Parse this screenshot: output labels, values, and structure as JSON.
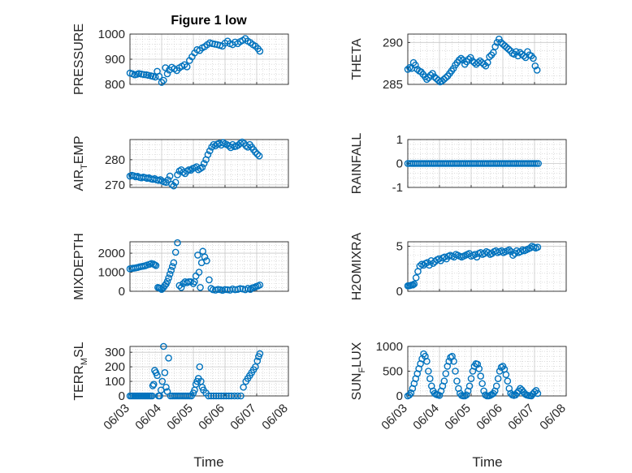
{
  "figure": {
    "title": "Figure 1 low",
    "xlabel": "Time"
  },
  "colors": {
    "marker": "#0072BD",
    "axis": "#262626",
    "grid": "#c8c8c8"
  },
  "chart_data": [
    {
      "type": "scatter",
      "ylabel": "PRESSURE",
      "ylabel_parts": [
        [
          "PRESSURE",
          0
        ]
      ],
      "title": "Figure 1 low",
      "show_x_ticks": false,
      "xlim": [
        "06/03",
        "06/08"
      ],
      "ylim": [
        800,
        1000
      ],
      "yticks": [
        800,
        900,
        1000
      ],
      "ytick_labels": [
        "800",
        "900",
        "1000"
      ],
      "x_days": [
        0.0,
        0.08,
        0.15,
        0.22,
        0.28,
        0.36,
        0.44,
        0.52,
        0.58,
        0.66,
        0.72,
        0.8,
        0.86,
        0.92,
        1.0,
        1.06,
        1.12,
        1.18,
        1.24,
        1.32,
        1.4,
        1.48,
        1.56,
        1.64,
        1.72,
        1.8,
        1.88,
        1.96,
        2.04,
        2.12,
        2.2,
        2.28,
        2.36,
        2.44,
        2.52,
        2.6,
        2.68,
        2.76,
        2.84,
        2.92,
        3.0,
        3.08,
        3.16,
        3.24,
        3.32,
        3.4,
        3.48,
        3.56,
        3.64,
        3.72,
        3.8,
        3.88,
        3.96,
        4.04,
        4.1
      ],
      "y": [
        845,
        842,
        838,
        840,
        843,
        841,
        839,
        838,
        836,
        834,
        832,
        829,
        852,
        832,
        808,
        816,
        866,
        842,
        857,
        868,
        862,
        855,
        866,
        872,
        878,
        870,
        895,
        910,
        925,
        938,
        935,
        945,
        950,
        958,
        965,
        962,
        960,
        958,
        955,
        952,
        964,
        972,
        962,
        958,
        968,
        962,
        970,
        975,
        982,
        972,
        966,
        958,
        952,
        942,
        932
      ]
    },
    {
      "type": "scatter",
      "ylabel": "THETA",
      "ylabel_parts": [
        [
          "THETA",
          0
        ]
      ],
      "show_x_ticks": false,
      "xlim": [
        "06/03",
        "06/08"
      ],
      "ylim": [
        285,
        291
      ],
      "yticks": [
        285,
        290
      ],
      "ytick_labels": [
        "285",
        "290"
      ],
      "x_days": [
        0.0,
        0.06,
        0.12,
        0.18,
        0.24,
        0.3,
        0.36,
        0.42,
        0.48,
        0.55,
        0.6,
        0.66,
        0.72,
        0.78,
        0.84,
        0.9,
        0.96,
        1.02,
        1.08,
        1.14,
        1.2,
        1.26,
        1.32,
        1.38,
        1.44,
        1.5,
        1.56,
        1.62,
        1.68,
        1.74,
        1.8,
        1.86,
        1.92,
        1.98,
        2.04,
        2.1,
        2.16,
        2.22,
        2.28,
        2.34,
        2.4,
        2.46,
        2.52,
        2.58,
        2.64,
        2.7,
        2.76,
        2.82,
        2.88,
        2.94,
        3.0,
        3.06,
        3.12,
        3.18,
        3.24,
        3.3,
        3.36,
        3.42,
        3.48,
        3.54,
        3.6,
        3.66,
        3.72,
        3.78,
        3.84,
        3.9,
        3.96,
        4.02,
        4.08
      ],
      "y": [
        286.8,
        287.0,
        286.9,
        287.6,
        287.3,
        286.8,
        286.6,
        286.5,
        286.2,
        285.9,
        285.6,
        285.8,
        286.1,
        286.3,
        285.9,
        285.7,
        285.5,
        285.3,
        285.4,
        285.6,
        285.8,
        286.0,
        286.3,
        286.6,
        286.9,
        287.3,
        287.6,
        287.9,
        288.1,
        287.9,
        287.4,
        287.7,
        288.0,
        288.2,
        287.8,
        287.6,
        287.4,
        287.6,
        287.8,
        287.6,
        287.4,
        287.2,
        287.6,
        288.3,
        288.5,
        288.8,
        289.5,
        290.0,
        290.4,
        290.0,
        289.8,
        289.6,
        289.4,
        289.2,
        289.0,
        288.7,
        288.6,
        288.9,
        288.4,
        288.8,
        288.6,
        288.4,
        288.2,
        288.9,
        288.5,
        288.4,
        288.1,
        287.2,
        286.7
      ]
    },
    {
      "type": "scatter",
      "ylabel": "AIRTEMP",
      "ylabel_parts": [
        [
          "AIR",
          0
        ],
        [
          "T",
          1
        ],
        [
          "EMP",
          0
        ]
      ],
      "show_x_ticks": false,
      "xlim": [
        "06/03",
        "06/08"
      ],
      "ylim": [
        269,
        288
      ],
      "yticks": [
        270,
        280
      ],
      "ytick_labels": [
        "270",
        "280"
      ],
      "x_days": [
        0.0,
        0.06,
        0.12,
        0.18,
        0.24,
        0.3,
        0.36,
        0.42,
        0.48,
        0.54,
        0.6,
        0.66,
        0.72,
        0.78,
        0.84,
        0.9,
        0.96,
        1.02,
        1.08,
        1.14,
        1.2,
        1.26,
        1.32,
        1.38,
        1.44,
        1.5,
        1.56,
        1.62,
        1.68,
        1.74,
        1.8,
        1.86,
        1.92,
        1.98,
        2.04,
        2.1,
        2.16,
        2.22,
        2.28,
        2.34,
        2.4,
        2.46,
        2.52,
        2.58,
        2.64,
        2.7,
        2.76,
        2.82,
        2.88,
        2.94,
        3.0,
        3.06,
        3.12,
        3.18,
        3.24,
        3.3,
        3.36,
        3.42,
        3.48,
        3.54,
        3.6,
        3.66,
        3.72,
        3.78,
        3.84,
        3.9,
        3.96,
        4.02,
        4.08
      ],
      "y": [
        273.5,
        273.8,
        273.6,
        273.2,
        273.4,
        273.0,
        272.8,
        273.1,
        272.9,
        272.6,
        272.8,
        272.4,
        272.2,
        272.5,
        272.0,
        271.8,
        272.1,
        271.5,
        271.2,
        271.0,
        272.0,
        273.5,
        270.2,
        269.6,
        271.0,
        274.0,
        275.5,
        276.0,
        275.0,
        274.5,
        275.5,
        276.0,
        275.8,
        276.5,
        276.8,
        277.2,
        276.0,
        276.5,
        277.0,
        278.5,
        280.0,
        282.0,
        283.5,
        285.0,
        286.0,
        285.5,
        286.2,
        286.5,
        285.8,
        286.8,
        286.3,
        286.0,
        285.5,
        284.8,
        286.0,
        285.2,
        285.4,
        285.8,
        286.5,
        287.0,
        286.5,
        285.5,
        285.0,
        286.0,
        285.0,
        284.0,
        283.0,
        282.2,
        281.5
      ]
    },
    {
      "type": "scatter",
      "ylabel": "RAINFALL",
      "ylabel_parts": [
        [
          "RAINFALL",
          0
        ]
      ],
      "show_x_ticks": false,
      "xlim": [
        "06/03",
        "06/08"
      ],
      "ylim": [
        -1,
        1
      ],
      "yticks": [
        -1,
        0,
        1
      ],
      "ytick_labels": [
        "-1",
        "0",
        "1"
      ],
      "x_range": [
        0.0,
        4.12
      ],
      "n_points": 70,
      "y_constant": 0
    },
    {
      "type": "scatter",
      "ylabel": "MIXDEPTH",
      "ylabel_parts": [
        [
          "MIXDEPTH",
          0
        ]
      ],
      "show_x_ticks": false,
      "xlim": [
        "06/03",
        "06/08"
      ],
      "ylim": [
        0,
        2600
      ],
      "yticks": [
        0,
        1000,
        2000
      ],
      "ytick_labels": [
        "0",
        "1000",
        "2000"
      ],
      "x_days": [
        0.0,
        0.06,
        0.12,
        0.18,
        0.24,
        0.3,
        0.36,
        0.42,
        0.48,
        0.54,
        0.62,
        0.68,
        0.74,
        0.78,
        0.82,
        0.88,
        0.92,
        0.96,
        1.0,
        1.06,
        1.1,
        1.14,
        1.18,
        1.22,
        1.26,
        1.3,
        1.34,
        1.38,
        1.44,
        1.5,
        1.56,
        1.62,
        1.68,
        1.74,
        1.8,
        1.86,
        1.92,
        2.0,
        2.04,
        2.08,
        2.14,
        2.18,
        2.22,
        2.26,
        2.3,
        2.36,
        2.42,
        2.5,
        2.56,
        2.62,
        2.7,
        2.78,
        2.86,
        2.92,
        3.0,
        3.08,
        3.16,
        3.24,
        3.32,
        3.4,
        3.48,
        3.56,
        3.64,
        3.72,
        3.8,
        3.86,
        3.92,
        3.98,
        4.04,
        4.1
      ],
      "y": [
        1180,
        1200,
        1210,
        1230,
        1250,
        1280,
        1300,
        1320,
        1340,
        1380,
        1420,
        1460,
        1430,
        1390,
        1350,
        200,
        180,
        150,
        100,
        200,
        300,
        380,
        520,
        700,
        900,
        1100,
        1300,
        1500,
        2050,
        2550,
        300,
        200,
        400,
        500,
        450,
        500,
        500,
        400,
        500,
        800,
        1900,
        1000,
        200,
        1500,
        2100,
        1800,
        1600,
        600,
        150,
        80,
        60,
        100,
        80,
        50,
        90,
        80,
        60,
        120,
        80,
        100,
        140,
        120,
        80,
        150,
        100,
        180,
        200,
        250,
        280,
        330
      ]
    },
    {
      "type": "scatter",
      "ylabel": "H2OMIXRA",
      "ylabel_parts": [
        [
          "H2OMIXRA",
          0
        ]
      ],
      "show_x_ticks": false,
      "xlim": [
        "06/03",
        "06/08"
      ],
      "ylim": [
        0,
        5.5
      ],
      "yticks": [
        0,
        5
      ],
      "ytick_labels": [
        "0",
        "5"
      ],
      "x_days": [
        0.0,
        0.04,
        0.08,
        0.12,
        0.16,
        0.2,
        0.26,
        0.32,
        0.38,
        0.44,
        0.5,
        0.56,
        0.62,
        0.68,
        0.74,
        0.8,
        0.86,
        0.92,
        0.98,
        1.04,
        1.1,
        1.16,
        1.22,
        1.28,
        1.34,
        1.4,
        1.46,
        1.52,
        1.58,
        1.64,
        1.7,
        1.76,
        1.82,
        1.88,
        1.94,
        2.0,
        2.06,
        2.12,
        2.18,
        2.24,
        2.3,
        2.36,
        2.42,
        2.48,
        2.54,
        2.6,
        2.66,
        2.72,
        2.78,
        2.84,
        2.9,
        2.96,
        3.02,
        3.08,
        3.14,
        3.2,
        3.26,
        3.32,
        3.38,
        3.44,
        3.5,
        3.56,
        3.62,
        3.68,
        3.74,
        3.8,
        3.86,
        3.92,
        3.98,
        4.04,
        4.1
      ],
      "y": [
        0.6,
        0.6,
        0.65,
        0.7,
        0.7,
        0.8,
        1.5,
        2.2,
        2.8,
        3.0,
        2.9,
        3.1,
        3.2,
        2.9,
        3.4,
        3.1,
        3.3,
        3.5,
        3.6,
        3.4,
        3.7,
        3.8,
        3.6,
        3.9,
        4.0,
        3.9,
        3.8,
        4.1,
        4.0,
        3.9,
        3.8,
        3.9,
        4.0,
        4.1,
        4.2,
        3.9,
        4.0,
        4.1,
        3.8,
        4.2,
        4.3,
        4.1,
        4.2,
        4.4,
        4.3,
        4.1,
        4.2,
        4.4,
        4.5,
        4.3,
        4.4,
        4.5,
        4.3,
        4.4,
        4.5,
        4.6,
        4.4,
        4.0,
        4.2,
        4.5,
        4.3,
        4.4,
        4.6,
        4.5,
        4.6,
        4.7,
        4.8,
        5.0,
        4.9,
        4.8,
        4.9
      ]
    },
    {
      "type": "scatter",
      "ylabel": "TERRMSL",
      "ylabel_parts": [
        [
          "TERR",
          0
        ],
        [
          "M",
          1
        ],
        [
          "SL",
          0
        ]
      ],
      "show_x_ticks": true,
      "xlim": [
        "06/03",
        "06/08"
      ],
      "ylim": [
        0,
        340
      ],
      "yticks": [
        0,
        100,
        200,
        300
      ],
      "ytick_labels": [
        "0",
        "100",
        "200",
        "300"
      ],
      "x_days": [
        0.0,
        0.05,
        0.1,
        0.15,
        0.2,
        0.25,
        0.3,
        0.35,
        0.4,
        0.45,
        0.5,
        0.55,
        0.6,
        0.65,
        0.7,
        0.72,
        0.75,
        0.78,
        0.82,
        0.86,
        0.9,
        0.94,
        0.98,
        1.02,
        1.06,
        1.1,
        1.14,
        1.18,
        1.22,
        1.28,
        1.34,
        1.4,
        1.46,
        1.52,
        1.58,
        1.64,
        1.7,
        1.76,
        1.82,
        1.88,
        1.94,
        2.0,
        2.04,
        2.08,
        2.12,
        2.16,
        2.2,
        2.24,
        2.28,
        2.32,
        2.4,
        2.48,
        2.56,
        2.64,
        2.72,
        2.8,
        2.88,
        2.96,
        3.04,
        3.12,
        3.2,
        3.3,
        3.4,
        3.5,
        3.58,
        3.66,
        3.72,
        3.78,
        3.84,
        3.9,
        3.96,
        4.02,
        4.06,
        4.1
      ],
      "y": [
        0,
        0,
        0,
        0,
        0,
        0,
        0,
        0,
        0,
        0,
        0,
        0,
        0,
        0,
        0,
        70,
        80,
        175,
        160,
        140,
        0,
        0,
        40,
        100,
        340,
        160,
        60,
        30,
        260,
        0,
        0,
        0,
        0,
        0,
        0,
        0,
        0,
        0,
        0,
        0,
        0,
        20,
        40,
        80,
        100,
        120,
        200,
        100,
        60,
        40,
        20,
        0,
        0,
        0,
        0,
        0,
        0,
        0,
        0,
        0,
        0,
        0,
        0,
        0,
        60,
        100,
        120,
        140,
        160,
        180,
        200,
        240,
        270,
        290
      ]
    },
    {
      "type": "scatter",
      "ylabel": "SUNFLUX",
      "ylabel_parts": [
        [
          "SUN",
          0
        ],
        [
          "F",
          1
        ],
        [
          "LUX",
          0
        ]
      ],
      "show_x_ticks": true,
      "xlim": [
        "06/03",
        "06/08"
      ],
      "ylim": [
        0,
        1000
      ],
      "yticks": [
        0,
        500,
        1000
      ],
      "ytick_labels": [
        "0",
        "500",
        "1000"
      ],
      "x_days": [
        0.0,
        0.05,
        0.1,
        0.15,
        0.2,
        0.25,
        0.3,
        0.35,
        0.4,
        0.45,
        0.5,
        0.55,
        0.6,
        0.65,
        0.7,
        0.75,
        0.8,
        0.85,
        0.9,
        0.95,
        1.0,
        1.05,
        1.1,
        1.15,
        1.2,
        1.25,
        1.3,
        1.35,
        1.4,
        1.45,
        1.5,
        1.55,
        1.6,
        1.65,
        1.7,
        1.75,
        1.8,
        1.85,
        1.9,
        1.95,
        2.0,
        2.05,
        2.1,
        2.15,
        2.2,
        2.25,
        2.3,
        2.35,
        2.4,
        2.45,
        2.5,
        2.55,
        2.6,
        2.65,
        2.7,
        2.75,
        2.8,
        2.85,
        2.9,
        2.95,
        3.0,
        3.05,
        3.1,
        3.15,
        3.2,
        3.25,
        3.3,
        3.35,
        3.4,
        3.45,
        3.5,
        3.55,
        3.6,
        3.65,
        3.7,
        3.75,
        3.8,
        3.85,
        3.9,
        3.95,
        4.0,
        4.05,
        4.1
      ],
      "y": [
        0,
        20,
        60,
        150,
        250,
        350,
        450,
        550,
        650,
        750,
        850,
        800,
        700,
        500,
        350,
        200,
        100,
        50,
        30,
        20,
        10,
        100,
        200,
        300,
        450,
        600,
        700,
        780,
        800,
        700,
        500,
        300,
        150,
        50,
        10,
        0,
        0,
        20,
        100,
        200,
        350,
        500,
        600,
        650,
        640,
        550,
        400,
        250,
        100,
        20,
        0,
        0,
        10,
        30,
        50,
        100,
        200,
        350,
        500,
        580,
        600,
        540,
        430,
        300,
        150,
        50,
        20,
        10,
        20,
        60,
        100,
        150,
        120,
        80,
        40,
        20,
        10,
        5,
        0,
        40,
        80,
        110,
        50
      ]
    }
  ]
}
